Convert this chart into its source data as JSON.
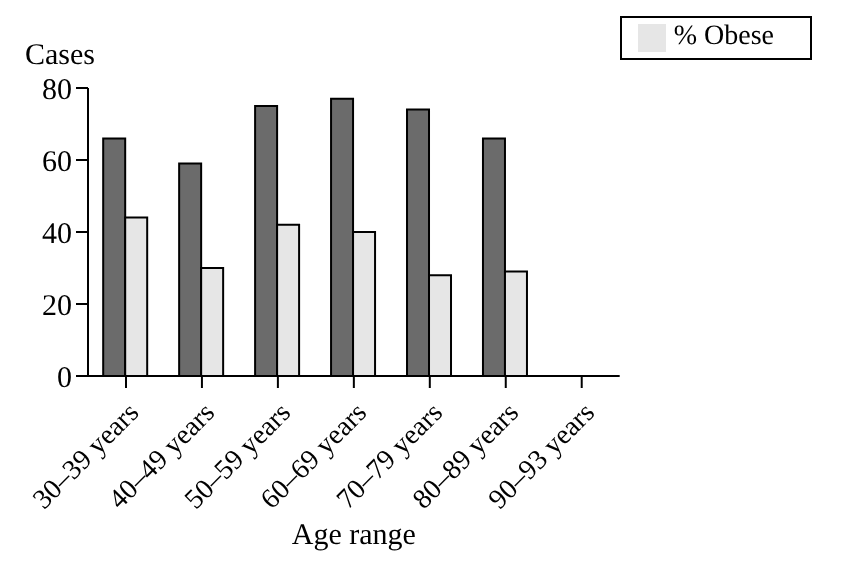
{
  "chart_data": {
    "type": "bar",
    "ylabel": "Cases",
    "xlabel": "Age range",
    "categories": [
      "30–39 years",
      "40–49 years",
      "50–59 years",
      "60–69 years",
      "70–79 years",
      "80–89 years",
      "90–93 years"
    ],
    "series": [
      {
        "color": "#6b6b6b",
        "values": [
          66,
          59,
          75,
          77,
          74,
          66,
          null
        ]
      },
      {
        "name": "% Obese",
        "color": "#e6e6e6",
        "values": [
          44,
          30,
          42,
          40,
          28,
          29,
          null
        ]
      }
    ],
    "ylim": [
      0,
      80
    ],
    "yticks": [
      0,
      20,
      40,
      60,
      80
    ],
    "grid": false,
    "legend": "top right"
  }
}
